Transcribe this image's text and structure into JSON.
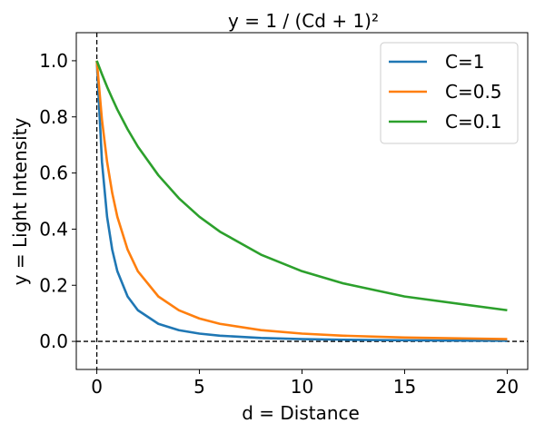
{
  "chart_data": {
    "type": "line",
    "title": "y = 1 / (Cd + 1)²",
    "xlabel": "d = Distance",
    "ylabel": "y = Light Intensity",
    "xlim": [
      -1.0,
      21.0
    ],
    "ylim": [
      -0.1,
      1.1
    ],
    "xticks": [
      0,
      5,
      10,
      15,
      20
    ],
    "xtick_labels": [
      "0",
      "5",
      "10",
      "15",
      "20"
    ],
    "yticks": [
      0.0,
      0.2,
      0.4,
      0.6,
      0.8,
      1.0
    ],
    "ytick_labels": [
      "0.0",
      "0.2",
      "0.4",
      "0.6",
      "0.8",
      "1.0"
    ],
    "grid": false,
    "legend_position": "upper right",
    "reference_lines": [
      {
        "orientation": "vertical",
        "x": 0,
        "style": "dashed",
        "color": "#000000"
      },
      {
        "orientation": "horizontal",
        "y": 0,
        "style": "dashed",
        "color": "#000000"
      }
    ],
    "x": [
      0,
      0.25,
      0.5,
      0.75,
      1,
      1.5,
      2,
      3,
      4,
      5,
      6,
      8,
      10,
      12,
      15,
      20
    ],
    "series": [
      {
        "name": "C=1",
        "color": "#1f77b4",
        "values": [
          1.0,
          0.64,
          0.444,
          0.327,
          0.25,
          0.16,
          0.111,
          0.0625,
          0.04,
          0.0278,
          0.0204,
          0.0123,
          0.0083,
          0.0059,
          0.0039,
          0.0023
        ]
      },
      {
        "name": "C=0.5",
        "color": "#ff7f0e",
        "values": [
          1.0,
          0.79,
          0.64,
          0.529,
          0.444,
          0.327,
          0.25,
          0.16,
          0.111,
          0.0816,
          0.0625,
          0.04,
          0.0278,
          0.0204,
          0.0138,
          0.0083
        ]
      },
      {
        "name": "C=0.1",
        "color": "#2ca02c",
        "values": [
          1.0,
          0.952,
          0.907,
          0.866,
          0.826,
          0.756,
          0.694,
          0.592,
          0.51,
          0.444,
          0.391,
          0.309,
          0.25,
          0.207,
          0.16,
          0.111
        ]
      }
    ]
  }
}
